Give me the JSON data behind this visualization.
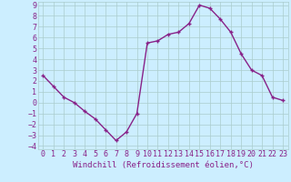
{
  "xlabel": "Windchill (Refroidissement éolien,°C)",
  "x": [
    0,
    1,
    2,
    3,
    4,
    5,
    6,
    7,
    8,
    9,
    10,
    11,
    12,
    13,
    14,
    15,
    16,
    17,
    18,
    19,
    20,
    21,
    22,
    23
  ],
  "y": [
    2.5,
    1.5,
    0.5,
    0.0,
    -0.8,
    -1.5,
    -2.5,
    -3.5,
    -2.7,
    -1.0,
    5.5,
    5.7,
    6.3,
    6.5,
    7.3,
    9.0,
    8.7,
    7.7,
    6.5,
    4.5,
    3.0,
    2.5,
    0.5,
    0.2
  ],
  "line_color": "#882288",
  "marker": "+",
  "bg_color": "#cceeff",
  "grid_color": "#aacccc",
  "tick_label_color": "#882288",
  "xlabel_color": "#882288",
  "ylim_min": -4,
  "ylim_max": 9,
  "xlim_min": 0,
  "xlim_max": 23,
  "yticks": [
    -4,
    -3,
    -2,
    -1,
    0,
    1,
    2,
    3,
    4,
    5,
    6,
    7,
    8,
    9
  ],
  "xticks": [
    0,
    1,
    2,
    3,
    4,
    5,
    6,
    7,
    8,
    9,
    10,
    11,
    12,
    13,
    14,
    15,
    16,
    17,
    18,
    19,
    20,
    21,
    22,
    23
  ],
  "tick_fontsize": 6,
  "xlabel_fontsize": 6.5,
  "linewidth": 1.0,
  "markersize": 3.5,
  "markeredgewidth": 1.0
}
